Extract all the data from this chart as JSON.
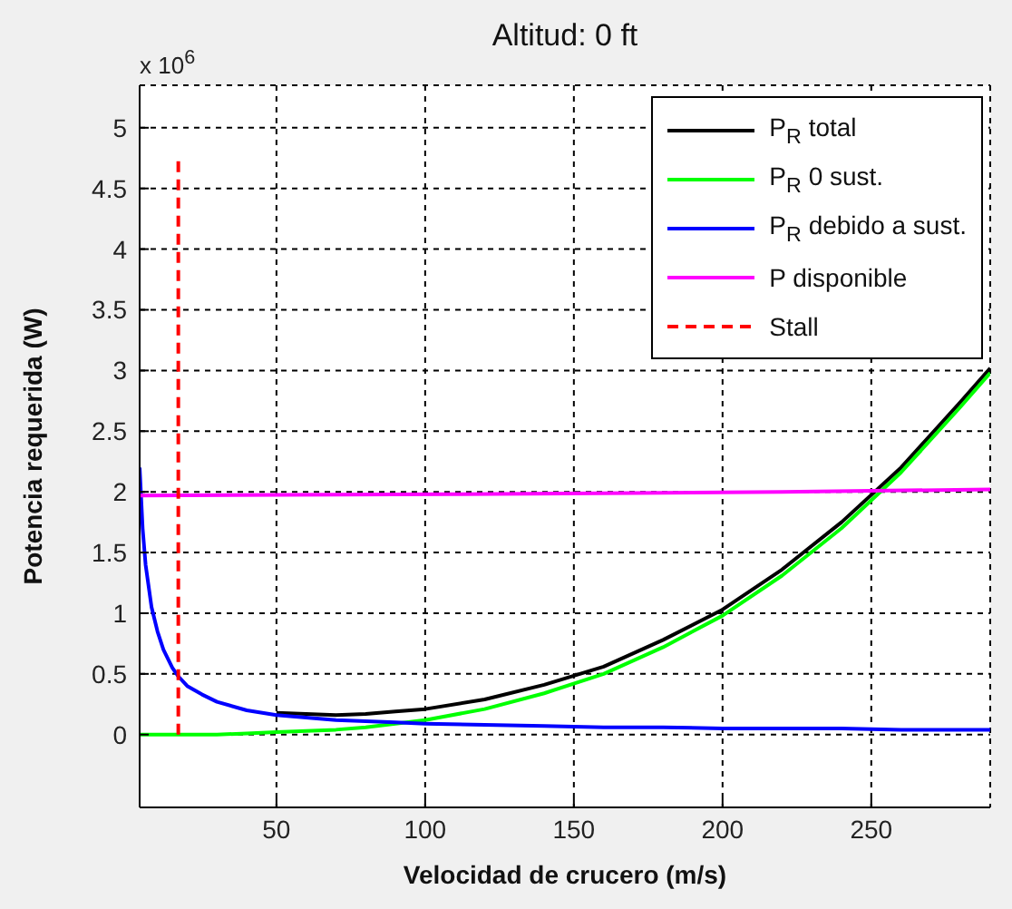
{
  "chart_data": {
    "type": "line",
    "title": "Altitud: 0 ft",
    "xlabel": "Velocidad de crucero (m/s)",
    "ylabel": "Potencia requerida (W)",
    "annotations": [
      "x 10$^{6}$"
    ],
    "xlim": [
      4,
      290
    ],
    "xticks": [
      50,
      100,
      150,
      200,
      250
    ],
    "ylim": [
      -0.6,
      5.35
    ],
    "yticks": [
      0,
      0.5,
      1,
      1.5,
      2,
      2.5,
      3,
      3.5,
      4,
      4.5,
      5
    ],
    "grid": true,
    "legend": "top right",
    "series": [
      {
        "name": "P$_{R}$ total",
        "color": "#000000",
        "x": [
          50,
          60,
          70,
          80,
          90,
          100,
          120,
          140,
          160,
          180,
          200,
          220,
          240,
          260,
          280,
          290
        ],
        "values": [
          0.18,
          0.17,
          0.16,
          0.17,
          0.19,
          0.21,
          0.29,
          0.41,
          0.56,
          0.78,
          1.03,
          1.36,
          1.75,
          2.2,
          2.74,
          3.02
        ]
      },
      {
        "name": "P$_{R}$ 0 sust.",
        "color": "#00ff00",
        "x": [
          4,
          10,
          20,
          30,
          40,
          50,
          60,
          70,
          80,
          90,
          100,
          120,
          140,
          160,
          180,
          200,
          220,
          240,
          260,
          280,
          290
        ],
        "values": [
          0,
          0,
          0,
          0,
          0.01,
          0.02,
          0.03,
          0.04,
          0.06,
          0.09,
          0.12,
          0.21,
          0.34,
          0.5,
          0.72,
          0.98,
          1.31,
          1.7,
          2.16,
          2.7,
          2.98
        ]
      },
      {
        "name": "P$_{R}$ debido a sust.",
        "color": "#0000ff",
        "x": [
          4,
          5,
          6,
          8,
          10,
          12,
          15,
          17,
          20,
          25,
          30,
          40,
          50,
          60,
          70,
          80,
          90,
          100,
          120,
          140,
          160,
          180,
          200,
          220,
          240,
          260,
          280,
          290
        ],
        "values": [
          2.2,
          1.7,
          1.4,
          1.05,
          0.85,
          0.7,
          0.55,
          0.48,
          0.4,
          0.33,
          0.27,
          0.2,
          0.16,
          0.14,
          0.12,
          0.11,
          0.1,
          0.09,
          0.08,
          0.07,
          0.06,
          0.06,
          0.05,
          0.05,
          0.05,
          0.04,
          0.04,
          0.04
        ]
      },
      {
        "name": "P disponible",
        "color": "#ff00ff",
        "x": [
          4,
          108,
          170,
          220,
          290
        ],
        "values": [
          1.97,
          1.98,
          1.99,
          2.0,
          2.02
        ]
      },
      {
        "name": "Stall",
        "color": "#ff0000",
        "line_style": "dashed",
        "x": [
          17,
          17
        ],
        "values": [
          0,
          4.75
        ]
      }
    ]
  }
}
